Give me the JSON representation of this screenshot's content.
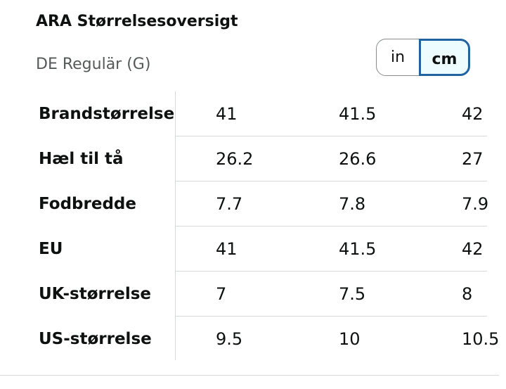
{
  "header": {
    "title": "ARA Størrelsesoversigt",
    "subtitle": "DE Regulär (G)"
  },
  "unit_toggle": {
    "options": [
      "in",
      "cm"
    ],
    "selected": "cm"
  },
  "table": {
    "rows": [
      {
        "label": "Brandstørrelse",
        "values": [
          "41",
          "41.5",
          "42"
        ]
      },
      {
        "label": "Hæl til tå",
        "values": [
          "26.2",
          "26.6",
          "27"
        ]
      },
      {
        "label": "Fodbredde",
        "values": [
          "7.7",
          "7.8",
          "7.9"
        ]
      },
      {
        "label": "EU",
        "values": [
          "41",
          "41.5",
          "42"
        ]
      },
      {
        "label": "UK-størrelse",
        "values": [
          "7",
          "7.5",
          "8"
        ]
      },
      {
        "label": "US-størrelse",
        "values": [
          "9.5",
          "10",
          "10.5"
        ]
      }
    ]
  }
}
